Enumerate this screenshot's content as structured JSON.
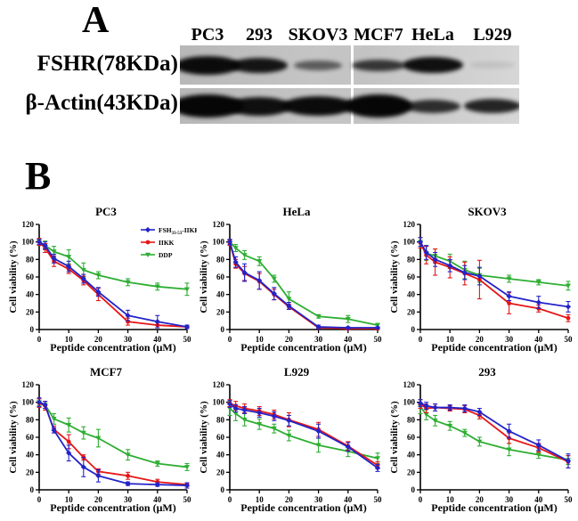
{
  "panel_a": {
    "label": "A",
    "lanes": [
      "PC3",
      "293",
      "SKOV3",
      "MCF7",
      "HeLa",
      "L929"
    ],
    "rows": [
      {
        "label": "FSHR(78KDa)",
        "band_intensities": [
          0.97,
          0.92,
          0.55,
          0.75,
          0.95,
          0.06
        ]
      },
      {
        "label": "β-Actin(43KDa)",
        "band_intensities": [
          1.0,
          0.95,
          0.97,
          1.0,
          0.8,
          0.85
        ]
      }
    ]
  },
  "panel_b": {
    "label": "B",
    "xlabel": "Peptide concentration (μM)",
    "ylabel": "Cell viability (%)",
    "legend": [
      {
        "prefix": "FSH",
        "sub": "33-53",
        "suffix": "-IIKK",
        "color": "#2323c8",
        "marker": "diamond"
      },
      {
        "prefix": "IIKK",
        "sub": "",
        "suffix": "",
        "color": "#e51616",
        "marker": "circle"
      },
      {
        "prefix": "DDP",
        "sub": "",
        "suffix": "",
        "color": "#2eae33",
        "marker": "triangle"
      }
    ]
  },
  "chart_data": [
    {
      "type": "line",
      "title": "PC3",
      "show_legend": true,
      "xlabel": "Peptide concentration (μM)",
      "ylabel": "Cell viability (%)",
      "x": [
        0,
        2,
        5,
        10,
        15,
        20,
        30,
        40,
        50
      ],
      "xlim": [
        0,
        50
      ],
      "ylim": [
        0,
        120
      ],
      "xticks": [
        0,
        10,
        20,
        30,
        40,
        50
      ],
      "yticks": [
        0,
        20,
        40,
        60,
        80,
        100,
        120
      ],
      "series": [
        {
          "name": "FSH33-53-IIKK",
          "color": "#2323c8",
          "marker": "diamond",
          "values": [
            100,
            96,
            81,
            72,
            58,
            43,
            16,
            9,
            3
          ],
          "errors": [
            3,
            4,
            5,
            6,
            5,
            5,
            6,
            7,
            2
          ]
        },
        {
          "name": "IIKK",
          "color": "#e51616",
          "marker": "circle",
          "values": [
            100,
            93,
            78,
            69,
            56,
            40,
            9,
            5,
            3
          ],
          "errors": [
            4,
            5,
            6,
            5,
            5,
            7,
            4,
            3,
            2
          ]
        },
        {
          "name": "DDP",
          "color": "#2eae33",
          "marker": "triangle",
          "values": [
            100,
            96,
            89,
            83,
            68,
            62,
            54,
            49,
            46
          ],
          "errors": [
            4,
            5,
            6,
            8,
            8,
            4,
            4,
            4,
            7
          ]
        }
      ]
    },
    {
      "type": "line",
      "title": "HeLa",
      "show_legend": false,
      "xlabel": "Peptide concentration (μM)",
      "ylabel": "Cell viability (%)",
      "x": [
        0,
        2,
        5,
        10,
        15,
        20,
        30,
        40,
        50
      ],
      "xlim": [
        0,
        50
      ],
      "ylim": [
        0,
        120
      ],
      "xticks": [
        0,
        10,
        20,
        30,
        40,
        50
      ],
      "yticks": [
        0,
        20,
        40,
        60,
        80,
        100,
        120
      ],
      "series": [
        {
          "name": "FSH33-53-IIKK",
          "color": "#2323c8",
          "marker": "diamond",
          "values": [
            100,
            77,
            65,
            56,
            41,
            27,
            3,
            2,
            2
          ],
          "errors": [
            3,
            6,
            10,
            10,
            7,
            4,
            2,
            1,
            1
          ]
        },
        {
          "name": "IIKK",
          "color": "#e51616",
          "marker": "circle",
          "values": [
            99,
            75,
            64,
            55,
            40,
            26,
            2,
            1,
            1
          ],
          "errors": [
            3,
            5,
            8,
            9,
            6,
            3,
            1,
            1,
            1
          ]
        },
        {
          "name": "DDP",
          "color": "#2eae33",
          "marker": "triangle",
          "values": [
            100,
            93,
            85,
            78,
            58,
            35,
            15,
            12,
            5
          ],
          "errors": [
            3,
            4,
            5,
            5,
            4,
            8,
            2,
            4,
            2
          ]
        }
      ]
    },
    {
      "type": "line",
      "title": "SKOV3",
      "show_legend": false,
      "xlabel": "Peptide concentration (μM)",
      "ylabel": "Cell viability (%)",
      "x": [
        0,
        2,
        5,
        10,
        15,
        20,
        30,
        40,
        50
      ],
      "xlim": [
        0,
        50
      ],
      "ylim": [
        0,
        120
      ],
      "xticks": [
        0,
        10,
        20,
        30,
        40,
        50
      ],
      "yticks": [
        0,
        20,
        40,
        60,
        80,
        100,
        120
      ],
      "series": [
        {
          "name": "FSH33-53-IIKK",
          "color": "#2323c8",
          "marker": "diamond",
          "values": [
            100,
            88,
            80,
            73,
            65,
            61,
            38,
            31,
            26
          ],
          "errors": [
            5,
            8,
            8,
            7,
            8,
            10,
            5,
            7,
            6
          ]
        },
        {
          "name": "IIKK",
          "color": "#e51616",
          "marker": "circle",
          "values": [
            99,
            85,
            77,
            71,
            64,
            57,
            30,
            24,
            13
          ],
          "errors": [
            6,
            10,
            15,
            12,
            13,
            22,
            12,
            4,
            4
          ]
        },
        {
          "name": "DDP",
          "color": "#2eae33",
          "marker": "triangle",
          "values": [
            100,
            87,
            84,
            78,
            68,
            62,
            58,
            54,
            50
          ],
          "errors": [
            5,
            8,
            8,
            8,
            10,
            8,
            4,
            3,
            5
          ]
        }
      ]
    },
    {
      "type": "line",
      "title": "MCF7",
      "show_legend": false,
      "xlabel": "Peptide concentration (μM)",
      "ylabel": "Cell viability (%)",
      "x": [
        0,
        2,
        5,
        10,
        15,
        20,
        30,
        40,
        50
      ],
      "xlim": [
        0,
        50
      ],
      "ylim": [
        0,
        120
      ],
      "xticks": [
        0,
        10,
        20,
        30,
        40,
        50
      ],
      "yticks": [
        0,
        20,
        40,
        60,
        80,
        100,
        120
      ],
      "series": [
        {
          "name": "FSH33-53-IIKK",
          "color": "#2323c8",
          "marker": "diamond",
          "values": [
            100,
            97,
            68,
            42,
            26,
            16,
            7,
            6,
            5
          ],
          "errors": [
            5,
            4,
            3,
            9,
            11,
            7,
            2,
            2,
            3
          ]
        },
        {
          "name": "IIKK",
          "color": "#e51616",
          "marker": "circle",
          "values": [
            99,
            96,
            69,
            55,
            37,
            21,
            16,
            9,
            6
          ],
          "errors": [
            5,
            5,
            4,
            8,
            3,
            3,
            4,
            3,
            2
          ]
        },
        {
          "name": "DDP",
          "color": "#2eae33",
          "marker": "triangle",
          "values": [
            100,
            97,
            81,
            74,
            65,
            59,
            40,
            30,
            26
          ],
          "errors": [
            4,
            4,
            6,
            8,
            7,
            10,
            6,
            3,
            4
          ]
        }
      ]
    },
    {
      "type": "line",
      "title": "L929",
      "show_legend": false,
      "xlabel": "Peptide concentration (μM)",
      "ylabel": "Cell viability (%)",
      "x": [
        0,
        2,
        5,
        10,
        15,
        20,
        30,
        40,
        50
      ],
      "xlim": [
        0,
        50
      ],
      "ylim": [
        0,
        120
      ],
      "xticks": [
        0,
        10,
        20,
        30,
        40,
        50
      ],
      "yticks": [
        0,
        20,
        40,
        60,
        80,
        100,
        120
      ],
      "series": [
        {
          "name": "FSH33-53-IIKK",
          "color": "#2323c8",
          "marker": "diamond",
          "values": [
            98,
            93,
            91,
            88,
            84,
            79,
            67,
            49,
            25
          ],
          "errors": [
            4,
            4,
            4,
            5,
            5,
            6,
            8,
            5,
            4
          ]
        },
        {
          "name": "IIKK",
          "color": "#e51616",
          "marker": "circle",
          "values": [
            99,
            96,
            93,
            90,
            86,
            80,
            69,
            50,
            28
          ],
          "errors": [
            4,
            5,
            5,
            5,
            5,
            8,
            8,
            5,
            4
          ]
        },
        {
          "name": "DDP",
          "color": "#2eae33",
          "marker": "triangle",
          "values": [
            93,
            87,
            80,
            75,
            70,
            62,
            51,
            44,
            36
          ],
          "errors": [
            8,
            8,
            7,
            6,
            5,
            6,
            8,
            6,
            6
          ]
        }
      ]
    },
    {
      "type": "line",
      "title": "293",
      "show_legend": false,
      "xlabel": "Peptide concentration (μM)",
      "ylabel": "Cell viability (%)",
      "x": [
        0,
        2,
        5,
        10,
        15,
        20,
        30,
        40,
        50
      ],
      "xlim": [
        0,
        50
      ],
      "ylim": [
        0,
        120
      ],
      "xticks": [
        0,
        10,
        20,
        30,
        40,
        50
      ],
      "yticks": [
        0,
        20,
        40,
        60,
        80,
        100,
        120
      ],
      "series": [
        {
          "name": "FSH33-53-IIKK",
          "color": "#2323c8",
          "marker": "diamond",
          "values": [
            99,
            96,
            94,
            94,
            93,
            89,
            67,
            51,
            33
          ],
          "errors": [
            4,
            4,
            4,
            3,
            4,
            4,
            8,
            6,
            8
          ]
        },
        {
          "name": "IIKK",
          "color": "#e51616",
          "marker": "circle",
          "values": [
            98,
            93,
            94,
            93,
            92,
            85,
            59,
            48,
            32
          ],
          "errors": [
            5,
            5,
            4,
            3,
            4,
            4,
            6,
            5,
            7
          ]
        },
        {
          "name": "DDP",
          "color": "#2eae33",
          "marker": "triangle",
          "values": [
            95,
            86,
            79,
            73,
            65,
            55,
            46,
            40,
            34
          ],
          "errors": [
            8,
            6,
            6,
            5,
            4,
            5,
            7,
            4,
            5
          ]
        }
      ]
    }
  ]
}
